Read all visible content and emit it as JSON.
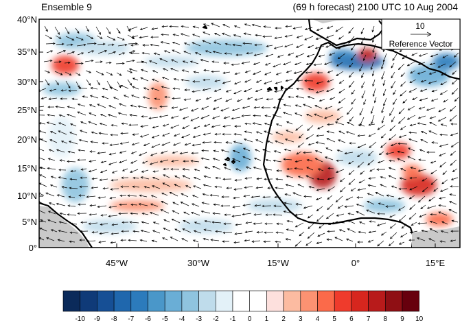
{
  "header": {
    "left_title": "Ensemble 9",
    "right_title": "(69 h forecast) 2100 UTC 10 Aug 2004"
  },
  "map": {
    "lat_labels": [
      "40°N",
      "35°N",
      "30°N",
      "25°N",
      "20°N",
      "15°N",
      "10°N",
      "5°N",
      "0°"
    ],
    "lon_labels": [
      "45°W",
      "30°W",
      "15°W",
      "0°",
      "15°E"
    ],
    "extent": {
      "lon_min": -62,
      "lon_max": 19,
      "lat_min": 0,
      "lat_max": 40
    },
    "reference_vector": {
      "value": "10",
      "label": "Reference Vector"
    }
  },
  "colorbar": {
    "labels": [
      "-10",
      "-9",
      "-8",
      "-7",
      "-6",
      "-5",
      "-4",
      "-3",
      "-2",
      "-1",
      "0",
      "1",
      "2",
      "3",
      "4",
      "5",
      "6",
      "7",
      "8",
      "9",
      "10"
    ],
    "colors": [
      "#0b2a5a",
      "#0f3a78",
      "#164f95",
      "#1f67ad",
      "#2c7bbc",
      "#4a97c9",
      "#6aaed6",
      "#8fc4df",
      "#bfdceb",
      "#e3f1f8",
      "#ffffff",
      "#ffffff",
      "#fde0dd",
      "#fcbba1",
      "#fc9272",
      "#fb6a4a",
      "#ef3b2c",
      "#d7261e",
      "#b81b1b",
      "#8f0f14",
      "#67000d"
    ]
  }
}
